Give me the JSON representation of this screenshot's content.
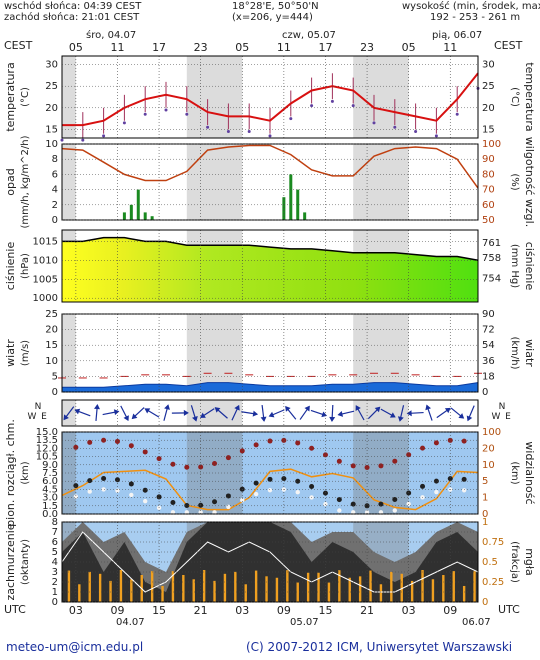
{
  "header": {
    "sunrise": "wschód słońca: 04:39 CEST",
    "sunset": "zachód słońca: 21:01 CEST",
    "coords": "18°28'E, 50°50'N",
    "grid": "(x=206, y=444)",
    "height_title": "wysokość (min, środek, max)",
    "height_values": "192 - 253 - 261 m",
    "tz_left": "CEST",
    "tz_right": "CEST",
    "utc_left": "UTC",
    "utc_right": "UTC"
  },
  "days_top": [
    "śro, 04.07",
    "czw, 05.07",
    "pią, 06.07"
  ],
  "days_bottom": [
    "04.07",
    "05.07",
    "06.07"
  ],
  "hours_top": [
    "05",
    "11",
    "17",
    "23",
    "05",
    "11",
    "17",
    "23",
    "05",
    "11"
  ],
  "hours_bottom": [
    "03",
    "09",
    "15",
    "21",
    "03",
    "09",
    "15",
    "21",
    "03",
    "09"
  ],
  "panels": {
    "temperature": {
      "label_left": "temperatura",
      "unit_left": "(°C)",
      "label_right": "temperatura",
      "unit_right": "(°C)",
      "ticks": [
        "15",
        "20",
        "25",
        "30"
      ]
    },
    "precip": {
      "label_left": "opad",
      "unit_left": "(mm/h, kg/m^2/h)",
      "label_right": "wilgotność wzgl.",
      "unit_right": "(%)",
      "ticks_left": [
        "0",
        "2",
        "4",
        "6",
        "8",
        "10"
      ],
      "ticks_right": [
        "50",
        "60",
        "70",
        "80",
        "90",
        "100"
      ]
    },
    "pressure": {
      "label_left": "ciśnienie",
      "unit_left": "(hPa)",
      "label_right": "ciśnienie",
      "unit_right": "(mm Hg)",
      "ticks_left": [
        "1000",
        "1005",
        "1010",
        "1015"
      ],
      "ticks_right": [
        "754",
        "758",
        "761"
      ]
    },
    "wind": {
      "label_left": "wiatr",
      "unit_left": "(m/s)",
      "label_right": "wiatr",
      "unit_right": "(km/h)",
      "ticks_left": [
        "0",
        "5",
        "10",
        "15",
        "20",
        "25"
      ],
      "ticks_right": [
        "0",
        "18",
        "36",
        "54",
        "72",
        "90"
      ]
    },
    "direction": {
      "compass_n": "N",
      "compass_e": "E",
      "compass_w": "W"
    },
    "clouds_base": {
      "label_left": "pion. rozciągł. chm.",
      "unit_left": "(km)",
      "label_right": "widzialność",
      "unit_right": "(km)",
      "ticks_left": [
        "0.0",
        "1.5",
        "3.0",
        "4.5",
        "6.0",
        "7.5",
        "9.0",
        "10.5",
        "12.0",
        "13.5",
        "15.0"
      ],
      "ticks_right": [
        "0",
        "1",
        "5",
        "10",
        "20",
        "100"
      ]
    },
    "cloudiness": {
      "label_left": "zachmurzenie",
      "unit_left": "(oktanty)",
      "label_right": "mgła",
      "unit_right": "(frakcja)",
      "ticks_left": [
        "0",
        "1",
        "2",
        "3",
        "4",
        "5",
        "6",
        "7",
        "8"
      ],
      "ticks_right": [
        "0",
        "0.25",
        "0.5",
        "0.75",
        "1"
      ]
    }
  },
  "chart_data": [
    {
      "type": "line",
      "title": "temperatura",
      "ylabel": "(°C)",
      "ylim": [
        13,
        32
      ],
      "x_hours_from_start": [
        0,
        3,
        6,
        9,
        12,
        15,
        18,
        21,
        24,
        27,
        30,
        33,
        36,
        39,
        42,
        45,
        48,
        51,
        54,
        57,
        60
      ],
      "series": [
        {
          "values": [
            16,
            16,
            17,
            20,
            22,
            23,
            22,
            19,
            18,
            18,
            17,
            21,
            24,
            25,
            24,
            20,
            19,
            18,
            17,
            22,
            28
          ]
        }
      ]
    },
    {
      "type": "line",
      "title": "wilgotność wzgl.",
      "ylabel": "(%)",
      "ylim": [
        50,
        100
      ],
      "series": [
        {
          "values": [
            97,
            96,
            88,
            80,
            76,
            76,
            82,
            96,
            98,
            99,
            99,
            93,
            83,
            79,
            79,
            92,
            97,
            98,
            97,
            90,
            71
          ]
        }
      ]
    },
    {
      "type": "area",
      "title": "ciśnienie",
      "ylabel": "(hPa)",
      "ylim": [
        999,
        1018
      ],
      "series": [
        {
          "values": [
            1015,
            1015,
            1016,
            1016,
            1015,
            1015,
            1014,
            1014,
            1014,
            1014,
            1013.5,
            1013,
            1013,
            1012.5,
            1012,
            1012,
            1012,
            1011.5,
            1011,
            1011,
            1010
          ]
        }
      ]
    },
    {
      "type": "area",
      "title": "wiatr",
      "ylabel": "(m/s)",
      "ylim": [
        0,
        25
      ],
      "series": [
        {
          "values": [
            1.5,
            1.5,
            1.5,
            2,
            2.5,
            2.5,
            2,
            3,
            3,
            2.5,
            2,
            2,
            2,
            2.5,
            2.5,
            3,
            3,
            2.5,
            2,
            2,
            3
          ]
        }
      ]
    }
  ]
}
